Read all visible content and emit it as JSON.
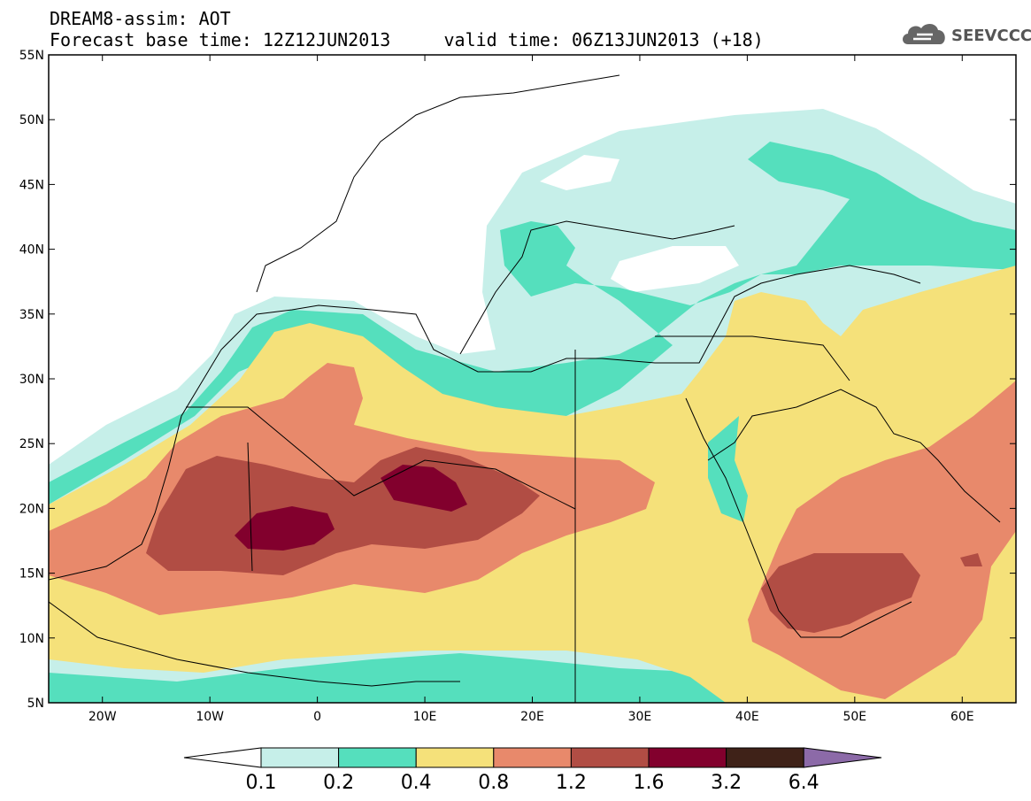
{
  "title": {
    "line1": "DREAM8-assim: AOT",
    "line2": "Forecast base time: 12Z12JUN2013     valid time: 06Z13JUN2013 (+18)"
  },
  "logo": {
    "text": "SEEVCCC",
    "icon": "cloud-icon"
  },
  "map": {
    "lat_labels": [
      "55N",
      "50N",
      "45N",
      "40N",
      "35N",
      "30N",
      "25N",
      "20N",
      "15N",
      "10N",
      "5N"
    ],
    "lon_labels": [
      "20W",
      "10W",
      "0",
      "10E",
      "20E",
      "30E",
      "40E",
      "50E",
      "60E"
    ]
  },
  "legend": {
    "labels": [
      "0.1",
      "0.2",
      "0.4",
      "0.8",
      "1.2",
      "1.6",
      "3.2",
      "6.4"
    ],
    "colors": [
      "#ffffff",
      "#c6efe9",
      "#55dfbd",
      "#f5e17a",
      "#e8896b",
      "#b14d44",
      "#82002d",
      "#3f2218",
      "#8c6aa8"
    ]
  }
}
